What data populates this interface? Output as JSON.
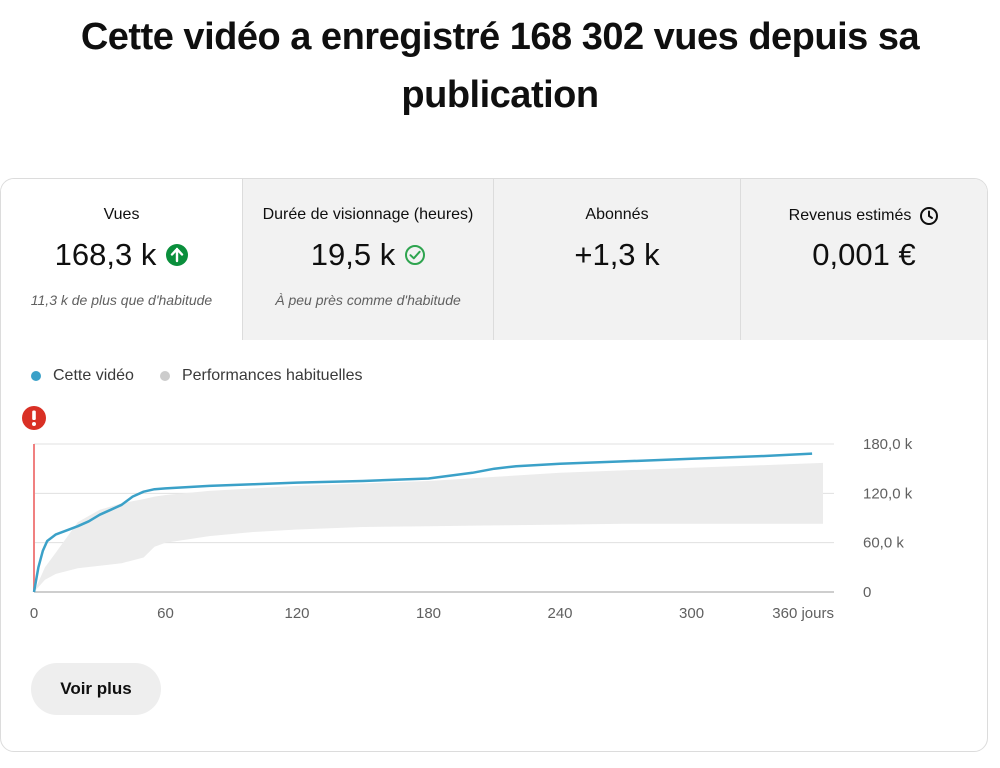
{
  "headline": "Cette vidéo a enregistré 168 302 vues depuis sa publication",
  "metrics": [
    {
      "label": "Vues",
      "value": "168,3 k",
      "note": "11,3 k de plus que d'habitude",
      "status_icon": "arrow-up-circle-icon"
    },
    {
      "label": "Durée de visionnage (heures)",
      "value": "19,5 k",
      "note": "À peu près comme d'habitude",
      "status_icon": "check-circle-icon"
    },
    {
      "label": "Abonnés",
      "value": "+1,3 k",
      "note": ""
    },
    {
      "label": "Revenus estimés",
      "value": "0,001 €",
      "note": "",
      "label_icon": "clock-icon"
    }
  ],
  "legend": {
    "this_video": "Cette vidéo",
    "typical": "Performances habituelles"
  },
  "colors": {
    "this_video": "#3ba1c8",
    "typical_band": "#ececec",
    "typical_dot": "#cccccc",
    "marker_line": "#f08080",
    "alert": "#d93025",
    "up_badge": "#0a8f3c",
    "check": "#2ea44f"
  },
  "chart_data": {
    "type": "line",
    "xlabel": "",
    "ylabel": "",
    "x_ticks": [
      "0",
      "60",
      "120",
      "180",
      "240",
      "300",
      "360 jours"
    ],
    "x_tick_values": [
      0,
      60,
      120,
      180,
      240,
      300,
      360
    ],
    "y_ticks": [
      "0",
      "60,0 k",
      "120,0 k",
      "180,0 k"
    ],
    "y_tick_values": [
      0,
      60000,
      120000,
      180000
    ],
    "xlim": [
      0,
      365
    ],
    "ylim": [
      0,
      180000
    ],
    "grid": true,
    "series": [
      {
        "name": "Cette vidéo",
        "x": [
          0,
          2,
          4,
          6,
          10,
          15,
          20,
          25,
          30,
          35,
          40,
          45,
          50,
          55,
          60,
          80,
          100,
          120,
          150,
          180,
          200,
          210,
          220,
          240,
          270,
          300,
          330,
          355
        ],
        "y": [
          0,
          30000,
          50000,
          62000,
          70000,
          75000,
          80000,
          86000,
          94000,
          100000,
          106000,
          116000,
          122000,
          125000,
          126000,
          129000,
          131000,
          133000,
          135000,
          138000,
          145000,
          150000,
          153000,
          156000,
          159000,
          162000,
          165000,
          168300
        ]
      }
    ],
    "band": {
      "name": "Performances habituelles",
      "x": [
        0,
        5,
        10,
        20,
        30,
        40,
        50,
        55,
        60,
        80,
        100,
        120,
        150,
        180,
        210,
        240,
        270,
        300,
        330,
        360
      ],
      "lower": [
        0,
        15000,
        22000,
        29000,
        32000,
        35000,
        42000,
        55000,
        60000,
        68000,
        73000,
        76000,
        79000,
        80000,
        81000,
        82000,
        83000,
        83000,
        83000,
        83000
      ],
      "upper": [
        0,
        30000,
        48000,
        85000,
        100000,
        108000,
        113000,
        116000,
        118000,
        123000,
        126000,
        129000,
        132000,
        135000,
        140000,
        145000,
        148000,
        151000,
        154000,
        157000
      ]
    }
  },
  "actions": {
    "more": "Voir plus"
  }
}
